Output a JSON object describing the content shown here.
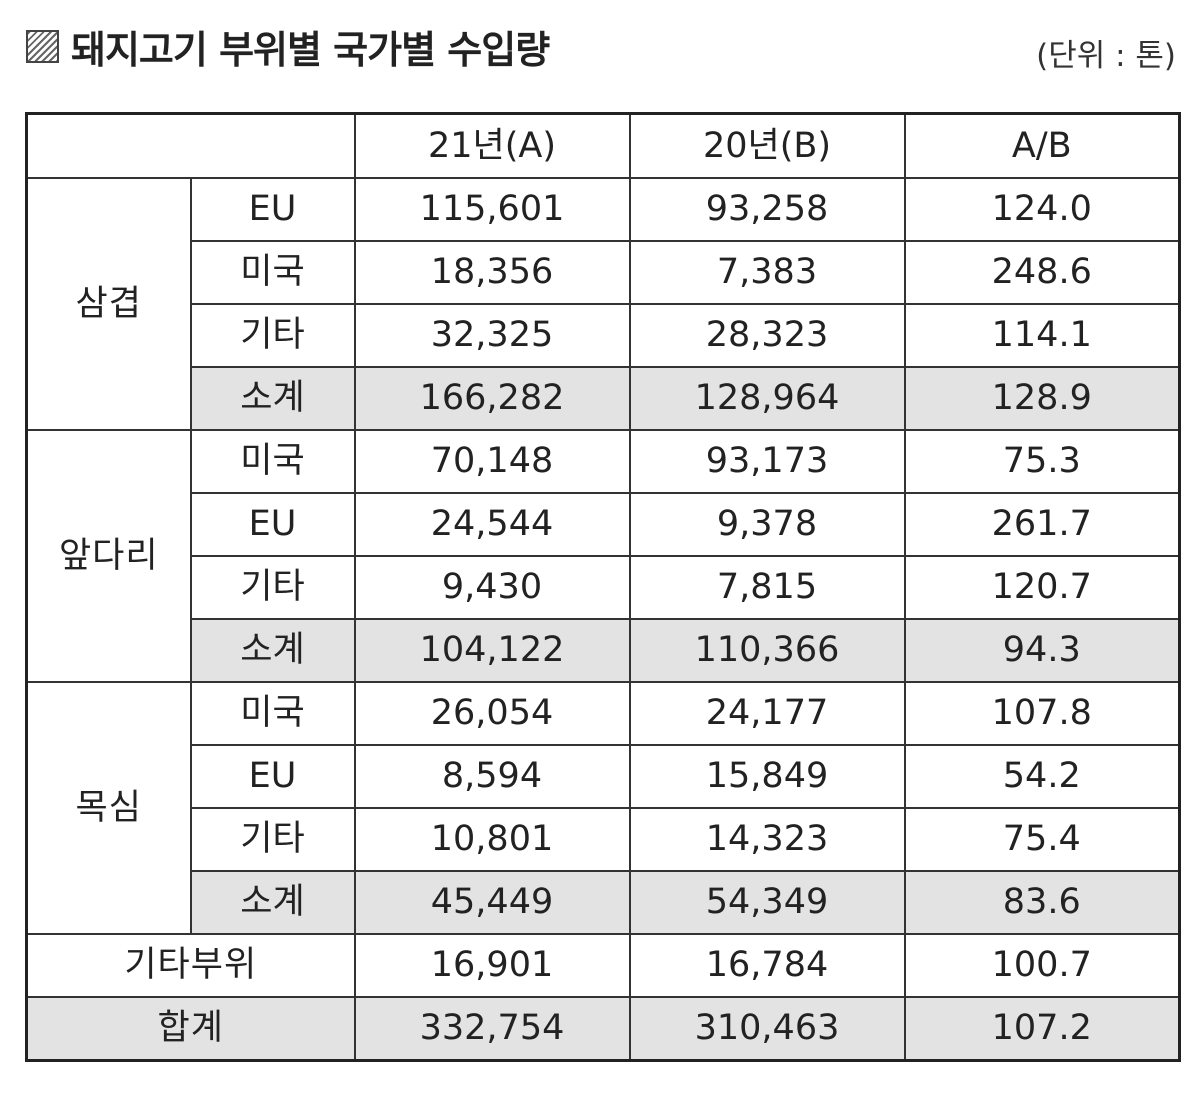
{
  "title": "돼지고기 부위별 국가별 수입량",
  "unit": "(단위 : 톤)",
  "columns": [
    "21년(A)",
    "20년(B)",
    "A/B"
  ],
  "groups": [
    {
      "label": "삼겹",
      "rows": [
        {
          "label": "EU",
          "a": "115,601",
          "b": "93,258",
          "ratio": "124.0"
        },
        {
          "label": "미국",
          "a": "18,356",
          "b": "7,383",
          "ratio": "248.6"
        },
        {
          "label": "기타",
          "a": "32,325",
          "b": "28,323",
          "ratio": "114.1"
        },
        {
          "label": "소계",
          "a": "166,282",
          "b": "128,964",
          "ratio": "128.9"
        }
      ]
    },
    {
      "label": "앞다리",
      "rows": [
        {
          "label": "미국",
          "a": "70,148",
          "b": "93,173",
          "ratio": "75.3"
        },
        {
          "label": "EU",
          "a": "24,544",
          "b": "9,378",
          "ratio": "261.7"
        },
        {
          "label": "기타",
          "a": "9,430",
          "b": "7,815",
          "ratio": "120.7"
        },
        {
          "label": "소계",
          "a": "104,122",
          "b": "110,366",
          "ratio": "94.3"
        }
      ]
    },
    {
      "label": "목심",
      "rows": [
        {
          "label": "미국",
          "a": "26,054",
          "b": "24,177",
          "ratio": "107.8"
        },
        {
          "label": "EU",
          "a": "8,594",
          "b": "15,849",
          "ratio": "54.2"
        },
        {
          "label": "기타",
          "a": "10,801",
          "b": "14,323",
          "ratio": "75.4"
        },
        {
          "label": "소계",
          "a": "45,449",
          "b": "54,349",
          "ratio": "83.6"
        }
      ]
    }
  ],
  "other_parts": {
    "label": "기타부위",
    "a": "16,901",
    "b": "16,784",
    "ratio": "100.7"
  },
  "total": {
    "label": "합계",
    "a": "332,754",
    "b": "310,463",
    "ratio": "107.2"
  },
  "shade_color": "#e3e3e3"
}
